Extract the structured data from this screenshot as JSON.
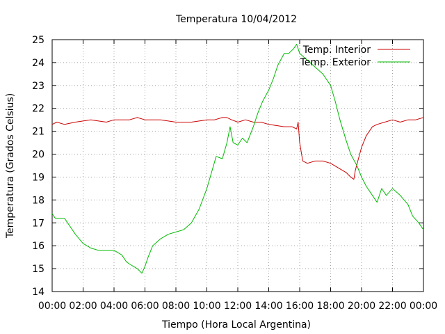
{
  "chart_data": {
    "type": "line",
    "title": "Temperatura 10/04/2012",
    "xlabel": "Tiempo (Hora Local Argentina)",
    "ylabel": "Temperatura (Grados Celsius)",
    "xlim": [
      0,
      24
    ],
    "ylim": [
      14,
      25
    ],
    "x_ticks": [
      0,
      2,
      4,
      6,
      8,
      10,
      12,
      14,
      16,
      18,
      20,
      22,
      24
    ],
    "x_tick_labels": [
      "00:00",
      "02:00",
      "04:00",
      "06:00",
      "08:00",
      "10:00",
      "12:00",
      "14:00",
      "16:00",
      "18:00",
      "20:00",
      "22:00",
      "00:00"
    ],
    "y_ticks": [
      14,
      15,
      16,
      17,
      18,
      19,
      20,
      21,
      22,
      23,
      24,
      25
    ],
    "y_tick_labels": [
      "14",
      "15",
      "16",
      "17",
      "18",
      "19",
      "20",
      "21",
      "22",
      "23",
      "24",
      "25"
    ],
    "grid": true,
    "legend_position": "top-right",
    "series": [
      {
        "name": "Temp. Interior",
        "color": "#cc0000",
        "points": [
          [
            0.0,
            21.3
          ],
          [
            0.3,
            21.4
          ],
          [
            0.8,
            21.3
          ],
          [
            1.5,
            21.4
          ],
          [
            2.5,
            21.5
          ],
          [
            3.5,
            21.4
          ],
          [
            4.0,
            21.5
          ],
          [
            5.0,
            21.5
          ],
          [
            5.5,
            21.6
          ],
          [
            6.0,
            21.5
          ],
          [
            7.0,
            21.5
          ],
          [
            8.0,
            21.4
          ],
          [
            9.0,
            21.4
          ],
          [
            10.0,
            21.5
          ],
          [
            10.5,
            21.5
          ],
          [
            11.0,
            21.6
          ],
          [
            11.3,
            21.6
          ],
          [
            11.6,
            21.5
          ],
          [
            12.0,
            21.4
          ],
          [
            12.5,
            21.5
          ],
          [
            13.0,
            21.4
          ],
          [
            13.5,
            21.4
          ],
          [
            14.0,
            21.3
          ],
          [
            15.0,
            21.2
          ],
          [
            15.5,
            21.2
          ],
          [
            15.8,
            21.1
          ],
          [
            15.9,
            21.4
          ],
          [
            16.0,
            20.5
          ],
          [
            16.2,
            19.7
          ],
          [
            16.5,
            19.6
          ],
          [
            17.0,
            19.7
          ],
          [
            17.5,
            19.7
          ],
          [
            18.0,
            19.6
          ],
          [
            18.5,
            19.4
          ],
          [
            19.0,
            19.2
          ],
          [
            19.3,
            19.0
          ],
          [
            19.5,
            18.9
          ],
          [
            19.6,
            19.3
          ],
          [
            19.8,
            19.8
          ],
          [
            20.0,
            20.3
          ],
          [
            20.3,
            20.8
          ],
          [
            20.7,
            21.2
          ],
          [
            21.0,
            21.3
          ],
          [
            21.5,
            21.4
          ],
          [
            22.0,
            21.5
          ],
          [
            22.5,
            21.4
          ],
          [
            23.0,
            21.5
          ],
          [
            23.5,
            21.5
          ],
          [
            24.0,
            21.6
          ]
        ]
      },
      {
        "name": "Temp. Exterior",
        "color": "#00bb00",
        "points": [
          [
            0.0,
            17.4
          ],
          [
            0.2,
            17.2
          ],
          [
            0.8,
            17.2
          ],
          [
            1.0,
            17.0
          ],
          [
            1.5,
            16.5
          ],
          [
            2.0,
            16.1
          ],
          [
            2.5,
            15.9
          ],
          [
            3.0,
            15.8
          ],
          [
            4.0,
            15.8
          ],
          [
            4.5,
            15.6
          ],
          [
            4.8,
            15.3
          ],
          [
            5.0,
            15.2
          ],
          [
            5.5,
            15.0
          ],
          [
            5.8,
            14.8
          ],
          [
            6.0,
            15.1
          ],
          [
            6.2,
            15.5
          ],
          [
            6.5,
            16.0
          ],
          [
            7.0,
            16.3
          ],
          [
            7.5,
            16.5
          ],
          [
            8.0,
            16.6
          ],
          [
            8.5,
            16.7
          ],
          [
            9.0,
            17.0
          ],
          [
            9.5,
            17.6
          ],
          [
            10.0,
            18.5
          ],
          [
            10.3,
            19.2
          ],
          [
            10.6,
            19.9
          ],
          [
            11.0,
            19.8
          ],
          [
            11.3,
            20.5
          ],
          [
            11.5,
            21.2
          ],
          [
            11.7,
            20.5
          ],
          [
            12.0,
            20.4
          ],
          [
            12.3,
            20.7
          ],
          [
            12.6,
            20.5
          ],
          [
            13.0,
            21.2
          ],
          [
            13.3,
            21.8
          ],
          [
            13.6,
            22.3
          ],
          [
            14.0,
            22.8
          ],
          [
            14.3,
            23.3
          ],
          [
            14.6,
            23.9
          ],
          [
            15.0,
            24.4
          ],
          [
            15.3,
            24.4
          ],
          [
            15.6,
            24.6
          ],
          [
            15.8,
            24.8
          ],
          [
            16.0,
            24.4
          ],
          [
            16.5,
            24.1
          ],
          [
            17.0,
            23.8
          ],
          [
            17.5,
            23.5
          ],
          [
            18.0,
            23.0
          ],
          [
            18.3,
            22.3
          ],
          [
            18.6,
            21.5
          ],
          [
            19.0,
            20.6
          ],
          [
            19.3,
            20.0
          ],
          [
            19.7,
            19.5
          ],
          [
            20.0,
            19.0
          ],
          [
            20.3,
            18.6
          ],
          [
            20.7,
            18.2
          ],
          [
            21.0,
            17.9
          ],
          [
            21.3,
            18.5
          ],
          [
            21.6,
            18.2
          ],
          [
            22.0,
            18.5
          ],
          [
            22.5,
            18.2
          ],
          [
            23.0,
            17.8
          ],
          [
            23.3,
            17.3
          ],
          [
            23.7,
            17.0
          ],
          [
            24.0,
            16.7
          ]
        ]
      }
    ]
  }
}
